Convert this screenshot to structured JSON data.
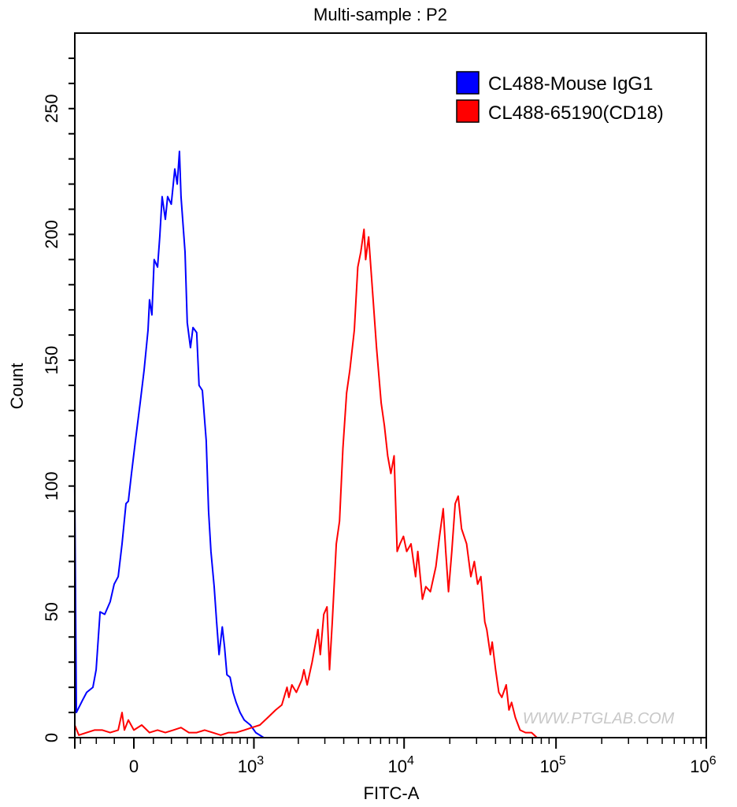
{
  "chart_data": {
    "type": "line",
    "title": "Multi-sample : P2",
    "xlabel": "FITC-A",
    "ylabel": "Count",
    "x_scale": "biexponential",
    "xlim": [
      -340,
      1000000
    ],
    "ylim": [
      0,
      280
    ],
    "x_ticks": [
      {
        "value": 0,
        "label": "0",
        "exp": ""
      },
      {
        "value": 1000,
        "label": "10",
        "exp": "3"
      },
      {
        "value": 10000,
        "label": "10",
        "exp": "4"
      },
      {
        "value": 100000,
        "label": "10",
        "exp": "5"
      },
      {
        "value": 1000000,
        "label": "10",
        "exp": "6"
      }
    ],
    "y_ticks": [
      0,
      50,
      100,
      150,
      200,
      250
    ],
    "grid": false,
    "legend_position": "top-right",
    "series": [
      {
        "name": "CL488-Mouse IgG1",
        "color": "#0000ff",
        "points": [
          [
            -340,
            100
          ],
          [
            -328,
            10
          ],
          [
            -285,
            15
          ],
          [
            -259,
            18
          ],
          [
            -220,
            20
          ],
          [
            -201,
            27
          ],
          [
            -178,
            50
          ],
          [
            -152,
            49
          ],
          [
            -122,
            54
          ],
          [
            -101,
            61
          ],
          [
            -80,
            64
          ],
          [
            -60,
            77
          ],
          [
            -40,
            93
          ],
          [
            -28,
            94
          ],
          [
            -12,
            105
          ],
          [
            8,
            118
          ],
          [
            32,
            133
          ],
          [
            52,
            146
          ],
          [
            72,
            162
          ],
          [
            80,
            174
          ],
          [
            92,
            168
          ],
          [
            104,
            190
          ],
          [
            122,
            187
          ],
          [
            134,
            199
          ],
          [
            147,
            215
          ],
          [
            165,
            206
          ],
          [
            178,
            215
          ],
          [
            199,
            212
          ],
          [
            220,
            226
          ],
          [
            235,
            220
          ],
          [
            249,
            233
          ],
          [
            259,
            215
          ],
          [
            285,
            193
          ],
          [
            300,
            165
          ],
          [
            322,
            155
          ],
          [
            340,
            163
          ],
          [
            367,
            161
          ],
          [
            385,
            140
          ],
          [
            411,
            138
          ],
          [
            443,
            118
          ],
          [
            463,
            90
          ],
          [
            484,
            74
          ],
          [
            513,
            60
          ],
          [
            536,
            46
          ],
          [
            560,
            33
          ],
          [
            592,
            44
          ],
          [
            616,
            36
          ],
          [
            642,
            25
          ],
          [
            677,
            24
          ],
          [
            712,
            18
          ],
          [
            749,
            14
          ],
          [
            800,
            10
          ],
          [
            856,
            7
          ],
          [
            945,
            5
          ],
          [
            1030,
            2
          ],
          [
            1170,
            0
          ],
          [
            1325,
            0
          ]
        ]
      },
      {
        "name": "CL488-65190(CD18)",
        "color": "#ff0000",
        "points": [
          [
            -340,
            5
          ],
          [
            -311,
            1
          ],
          [
            -259,
            2
          ],
          [
            -211,
            3
          ],
          [
            -165,
            3
          ],
          [
            -122,
            2
          ],
          [
            -80,
            3
          ],
          [
            -60,
            10
          ],
          [
            -48,
            3
          ],
          [
            -28,
            7
          ],
          [
            0,
            3
          ],
          [
            40,
            5
          ],
          [
            80,
            2
          ],
          [
            122,
            3
          ],
          [
            165,
            2
          ],
          [
            211,
            3
          ],
          [
            259,
            4
          ],
          [
            311,
            2
          ],
          [
            367,
            2
          ],
          [
            430,
            3
          ],
          [
            499,
            2
          ],
          [
            576,
            1
          ],
          [
            660,
            2
          ],
          [
            749,
            2
          ],
          [
            856,
            3
          ],
          [
            969,
            4
          ],
          [
            1099,
            5
          ],
          [
            1245,
            8
          ],
          [
            1409,
            11
          ],
          [
            1550,
            13
          ],
          [
            1680,
            20
          ],
          [
            1730,
            16
          ],
          [
            1810,
            21
          ],
          [
            1940,
            18
          ],
          [
            2110,
            23
          ],
          [
            2180,
            27
          ],
          [
            2290,
            21
          ],
          [
            2470,
            30
          ],
          [
            2700,
            43
          ],
          [
            2800,
            33
          ],
          [
            2950,
            49
          ],
          [
            3100,
            52
          ],
          [
            3220,
            27
          ],
          [
            3360,
            46
          ],
          [
            3570,
            77
          ],
          [
            3750,
            86
          ],
          [
            3950,
            115
          ],
          [
            4180,
            137
          ],
          [
            4390,
            146
          ],
          [
            4700,
            162
          ],
          [
            4950,
            187
          ],
          [
            5180,
            193
          ],
          [
            5440,
            202
          ],
          [
            5580,
            190
          ],
          [
            5840,
            199
          ],
          [
            6250,
            174
          ],
          [
            6580,
            155
          ],
          [
            7060,
            133
          ],
          [
            7420,
            124
          ],
          [
            7800,
            112
          ],
          [
            8180,
            105
          ],
          [
            8590,
            112
          ],
          [
            9000,
            74
          ],
          [
            9400,
            77
          ],
          [
            9900,
            80
          ],
          [
            10400,
            74
          ],
          [
            11100,
            77
          ],
          [
            11900,
            64
          ],
          [
            12300,
            74
          ],
          [
            13200,
            55
          ],
          [
            13900,
            60
          ],
          [
            14900,
            58
          ],
          [
            16200,
            68
          ],
          [
            17100,
            80
          ],
          [
            18100,
            91
          ],
          [
            18800,
            74
          ],
          [
            19600,
            58
          ],
          [
            20600,
            74
          ],
          [
            21700,
            93
          ],
          [
            22700,
            96
          ],
          [
            23900,
            83
          ],
          [
            25800,
            77
          ],
          [
            27500,
            64
          ],
          [
            29000,
            70
          ],
          [
            30500,
            61
          ],
          [
            32000,
            64
          ],
          [
            34000,
            46
          ],
          [
            35000,
            43
          ],
          [
            37000,
            33
          ],
          [
            38000,
            38
          ],
          [
            40000,
            27
          ],
          [
            42000,
            18
          ],
          [
            44000,
            16
          ],
          [
            47000,
            21
          ],
          [
            49000,
            11
          ],
          [
            51000,
            14
          ],
          [
            54000,
            8
          ],
          [
            58000,
            3
          ],
          [
            63000,
            2
          ],
          [
            69000,
            2
          ],
          [
            75000,
            0
          ],
          [
            90000,
            0
          ]
        ]
      }
    ]
  },
  "watermark": "WWW.PTGLAB.COM"
}
